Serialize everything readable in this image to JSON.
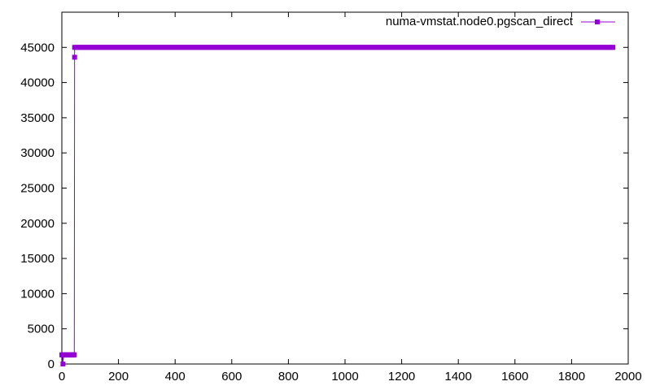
{
  "chart_data": {
    "type": "line",
    "title": "",
    "xlabel": "",
    "ylabel": "",
    "xlim": [
      0,
      2000
    ],
    "ylim": [
      0,
      50000
    ],
    "x_ticks": [
      0,
      200,
      400,
      600,
      800,
      1000,
      1200,
      1400,
      1600,
      1800,
      2000
    ],
    "y_ticks": [
      0,
      5000,
      10000,
      15000,
      20000,
      25000,
      30000,
      35000,
      40000,
      45000
    ],
    "grid": false,
    "legend_position": "top-right",
    "series": [
      {
        "name": "numa-vmstat.node0.pgscan_direct",
        "color": "#9400d3",
        "marker": "square",
        "points": [
          [
            0,
            1300
          ],
          [
            2,
            1300
          ],
          [
            4,
            0
          ],
          [
            6,
            1300
          ],
          [
            8,
            1300
          ],
          [
            10,
            1300
          ],
          [
            12,
            1300
          ],
          [
            14,
            1300
          ],
          [
            16,
            1300
          ],
          [
            18,
            1300
          ],
          [
            20,
            1300
          ],
          [
            22,
            1300
          ],
          [
            24,
            1300
          ],
          [
            26,
            1300
          ],
          [
            28,
            1300
          ],
          [
            30,
            1300
          ],
          [
            32,
            1300
          ],
          [
            34,
            1300
          ],
          [
            36,
            1300
          ],
          [
            38,
            1300
          ],
          [
            40,
            1300
          ],
          [
            42,
            1300
          ],
          [
            44,
            1300
          ],
          [
            45,
            43600
          ],
          [
            45,
            45000
          ],
          [
            1946,
            45000
          ]
        ],
        "flat_segment_marker_step": 5
      }
    ]
  }
}
